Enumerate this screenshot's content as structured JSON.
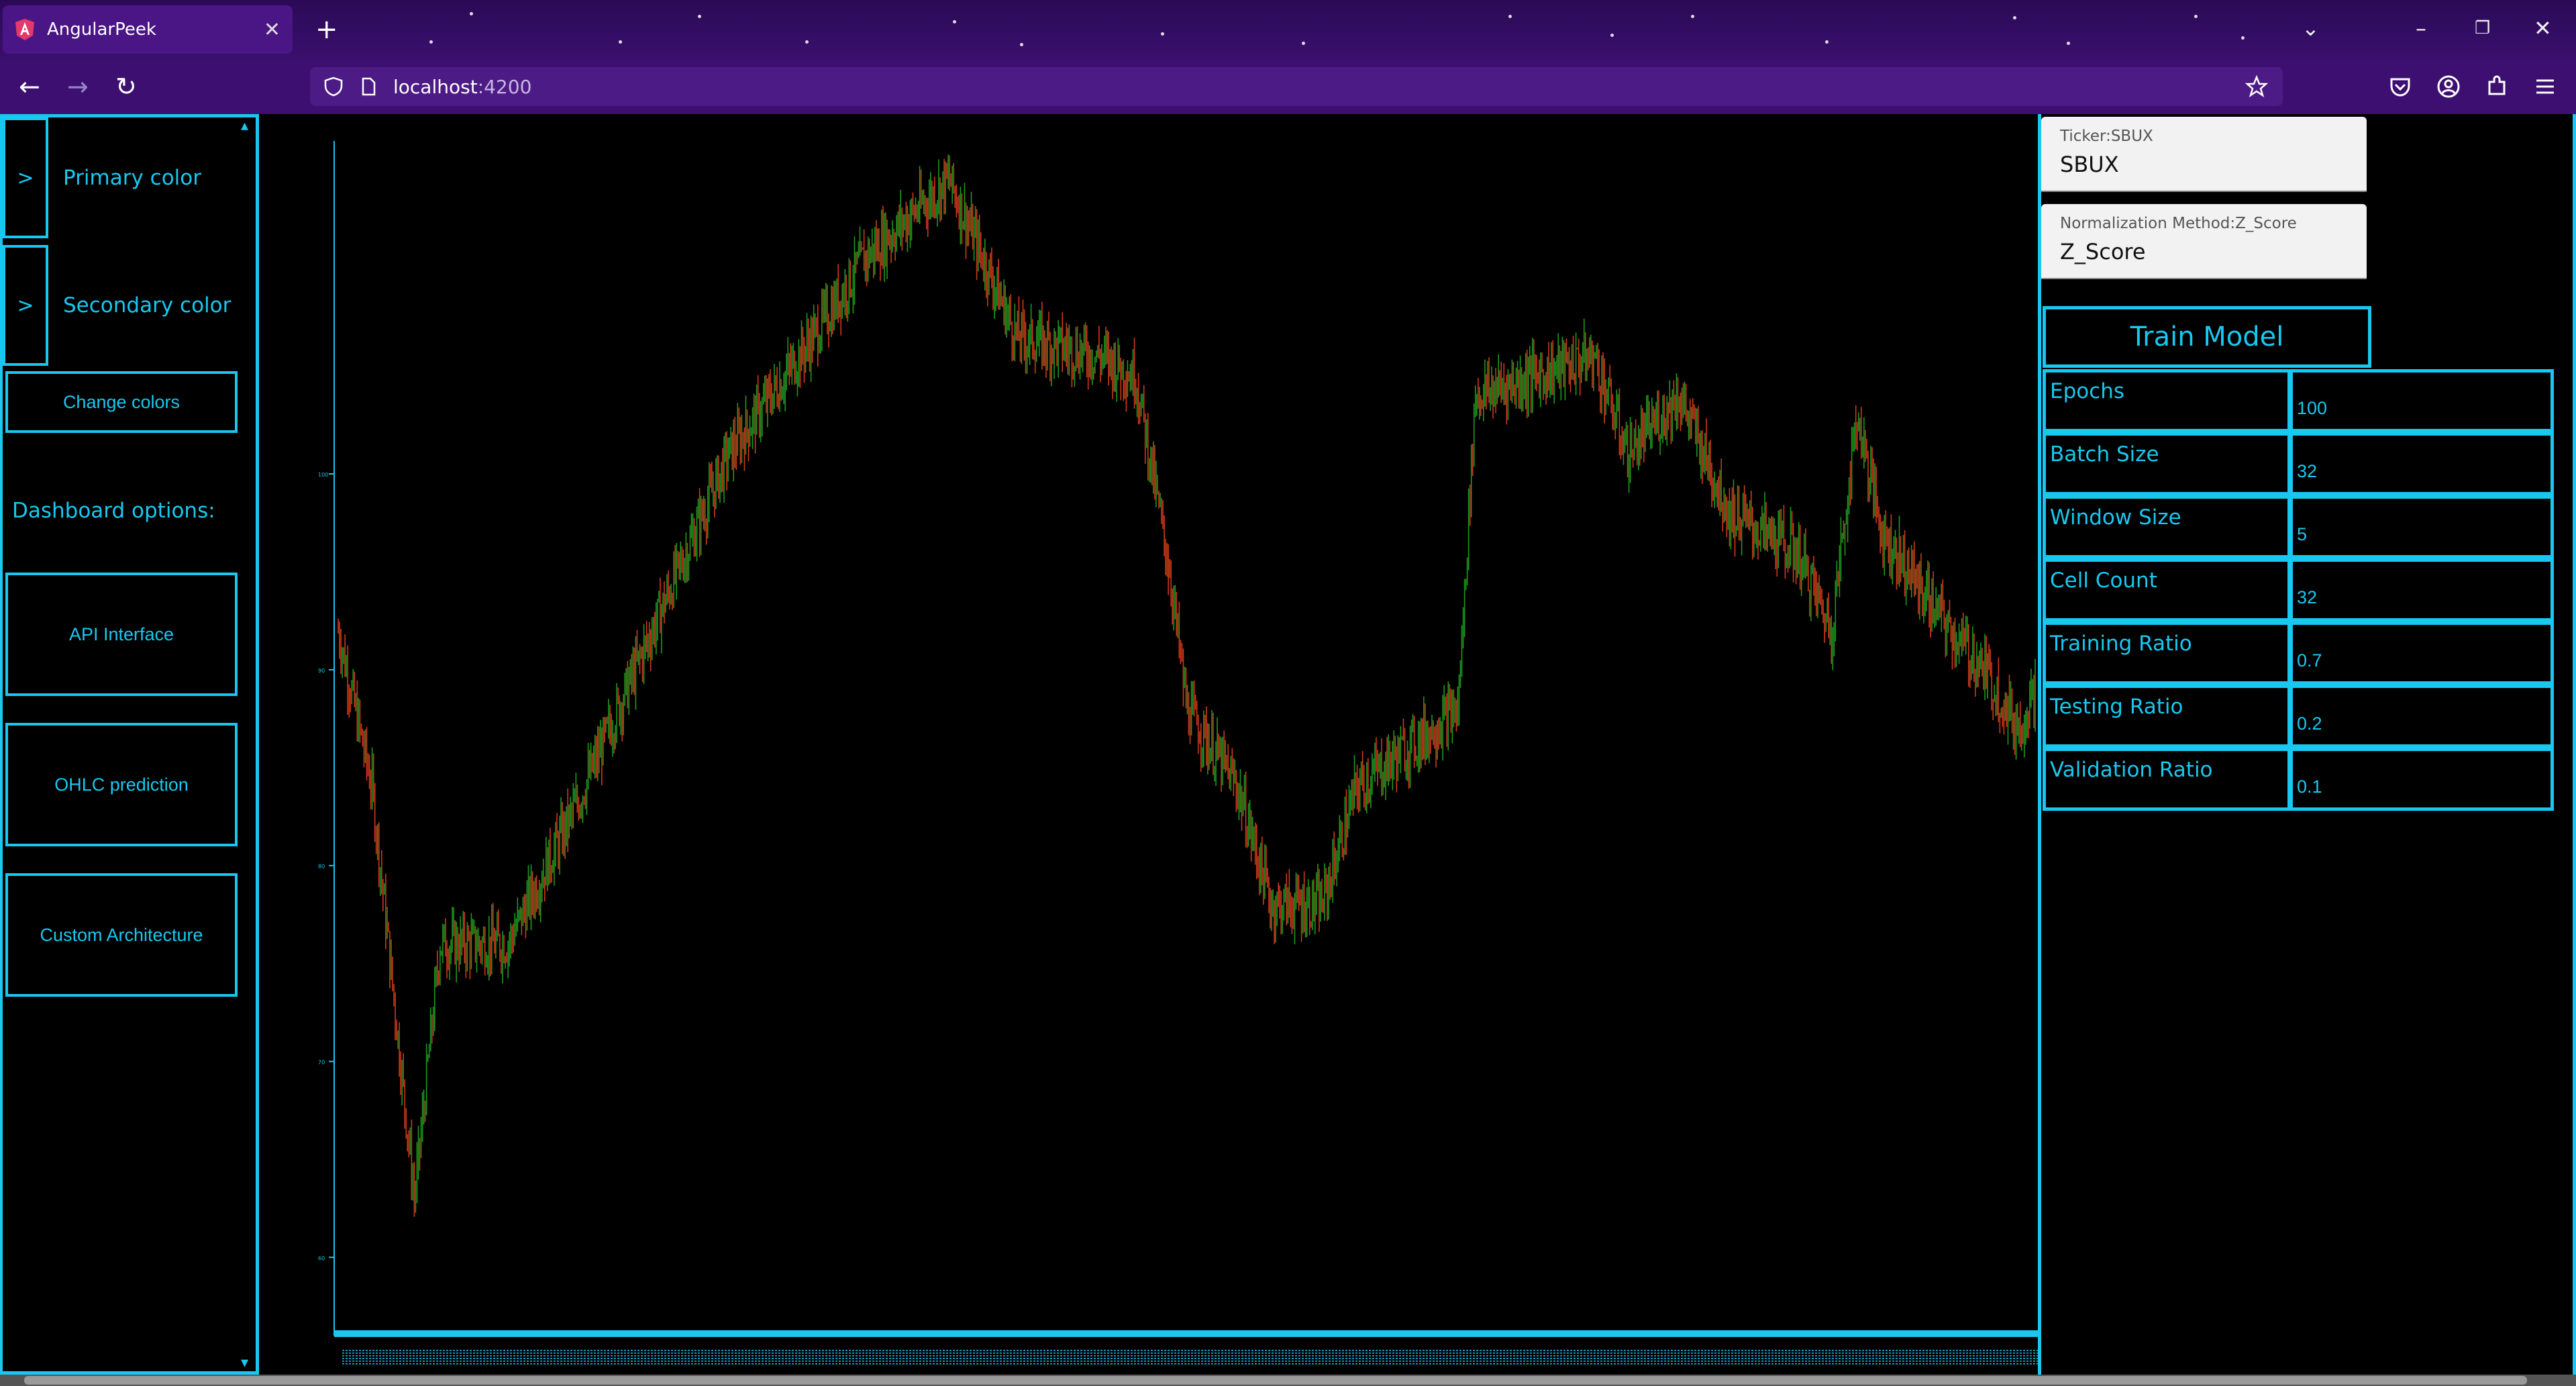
{
  "browser": {
    "tab_title": "AngularPeek",
    "url_host": "localhost",
    "url_port": ":4200"
  },
  "sidebar": {
    "primary_color_label": "Primary color",
    "secondary_color_label": "Secondary color",
    "chevron": ">",
    "change_colors_label": "Change colors",
    "dashboard_heading": "Dashboard options:",
    "options": [
      "API Interface",
      "OHLC prediction",
      "Custom Architecture"
    ]
  },
  "form": {
    "ticker_label": "Ticker:SBUX",
    "ticker_value": "SBUX",
    "norm_label": "Normalization Method:Z_Score",
    "norm_value": "Z_Score",
    "train_button": "Train Model",
    "params": [
      {
        "label": "Epochs",
        "value": "100"
      },
      {
        "label": "Batch Size",
        "value": "32"
      },
      {
        "label": "Window Size",
        "value": "5"
      },
      {
        "label": "Cell Count",
        "value": "32"
      },
      {
        "label": "Training Ratio",
        "value": "0.7"
      },
      {
        "label": "Testing Ratio",
        "value": "0.2"
      },
      {
        "label": "Validation Ratio",
        "value": "0.1"
      }
    ]
  },
  "chart_data": {
    "type": "candlestick",
    "title": "",
    "series_name": "SBUX",
    "up_color": "#1e9b1e",
    "down_color": "#d23a1a",
    "axis_color": "#18c8f0",
    "ylim": [
      56,
      117
    ],
    "y_ticks": [
      60,
      70,
      80,
      90,
      100
    ],
    "path_anchors": [
      [
        0,
        92
      ],
      [
        0.02,
        84
      ],
      [
        0.045,
        63
      ],
      [
        0.06,
        76
      ],
      [
        0.1,
        76
      ],
      [
        0.14,
        83
      ],
      [
        0.19,
        93
      ],
      [
        0.23,
        101
      ],
      [
        0.28,
        107
      ],
      [
        0.31,
        111
      ],
      [
        0.36,
        115
      ],
      [
        0.4,
        107
      ],
      [
        0.45,
        106
      ],
      [
        0.47,
        105
      ],
      [
        0.49,
        95
      ],
      [
        0.5,
        88
      ],
      [
        0.53,
        84
      ],
      [
        0.55,
        78
      ],
      [
        0.58,
        78
      ],
      [
        0.6,
        84
      ],
      [
        0.66,
        88
      ],
      [
        0.67,
        104
      ],
      [
        0.74,
        106
      ],
      [
        0.76,
        101
      ],
      [
        0.79,
        104
      ],
      [
        0.82,
        98
      ],
      [
        0.86,
        96
      ],
      [
        0.88,
        92
      ],
      [
        0.895,
        103
      ],
      [
        0.91,
        97
      ],
      [
        0.95,
        92
      ],
      [
        0.97,
        90
      ],
      [
        0.99,
        87
      ],
      [
        1.0,
        89
      ]
    ],
    "up_color_name": "green",
    "down_color_name": "red"
  },
  "colors": {
    "accent": "#18c8f0",
    "background": "#000000",
    "chrome_purple": "#3c0f70"
  },
  "icons": [
    "angular-icon",
    "close-icon",
    "plus-icon",
    "back-icon",
    "forward-icon",
    "reload-icon",
    "shield-icon",
    "page-icon",
    "bookmark-star-icon",
    "pocket-icon",
    "account-icon",
    "extensions-icon",
    "menu-icon",
    "tab-list-icon",
    "minimize-icon",
    "restore-icon",
    "window-close-icon"
  ]
}
